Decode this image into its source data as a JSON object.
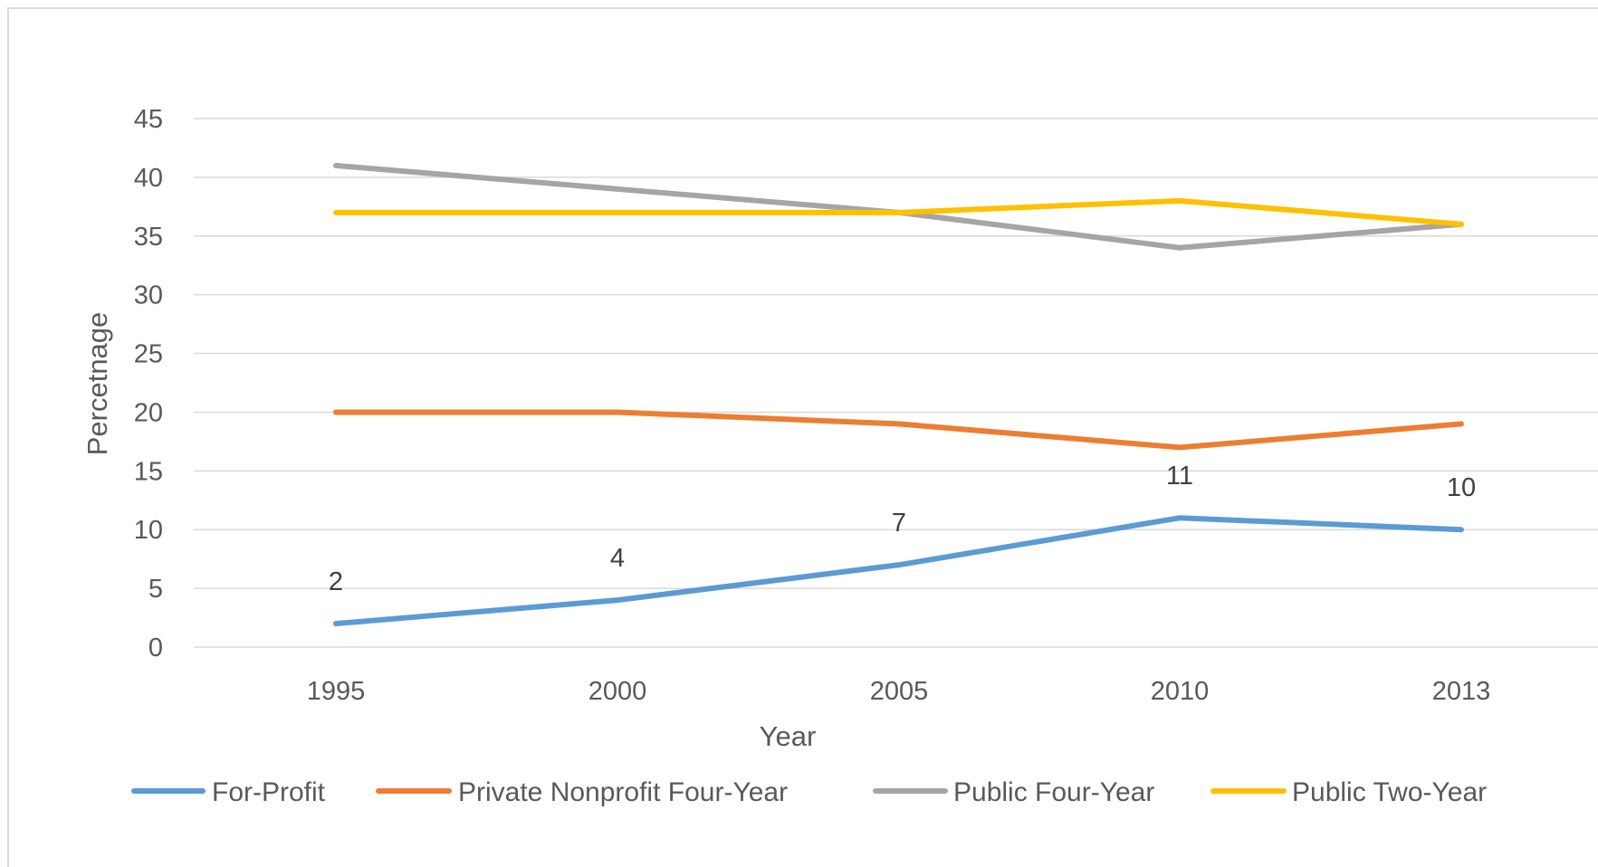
{
  "chart_data": {
    "type": "line",
    "title": "",
    "xlabel": "Year",
    "ylabel": "Percetnage",
    "x": [
      "1995",
      "2000",
      "2005",
      "2010",
      "2013"
    ],
    "ylim": [
      0,
      45
    ],
    "yticks": [
      0,
      5,
      10,
      15,
      20,
      25,
      30,
      35,
      40,
      45
    ],
    "grid": "horizontal",
    "legend": "bottom",
    "series": [
      {
        "name": "For-Profit",
        "color": "#5b9bd5",
        "values": [
          2,
          4,
          7,
          11,
          10
        ],
        "labels": [
          "2",
          "4",
          "7",
          "11",
          "10"
        ]
      },
      {
        "name": "Private Nonprofit Four-Year",
        "color": "#ed7d31",
        "values": [
          20,
          20,
          19,
          17,
          19
        ]
      },
      {
        "name": "Public Four-Year",
        "color": "#a5a5a5",
        "values": [
          41,
          39,
          37,
          34,
          36
        ]
      },
      {
        "name": "Public Two-Year",
        "color": "#ffc000",
        "values": [
          37,
          37,
          37,
          38,
          36
        ]
      }
    ]
  }
}
